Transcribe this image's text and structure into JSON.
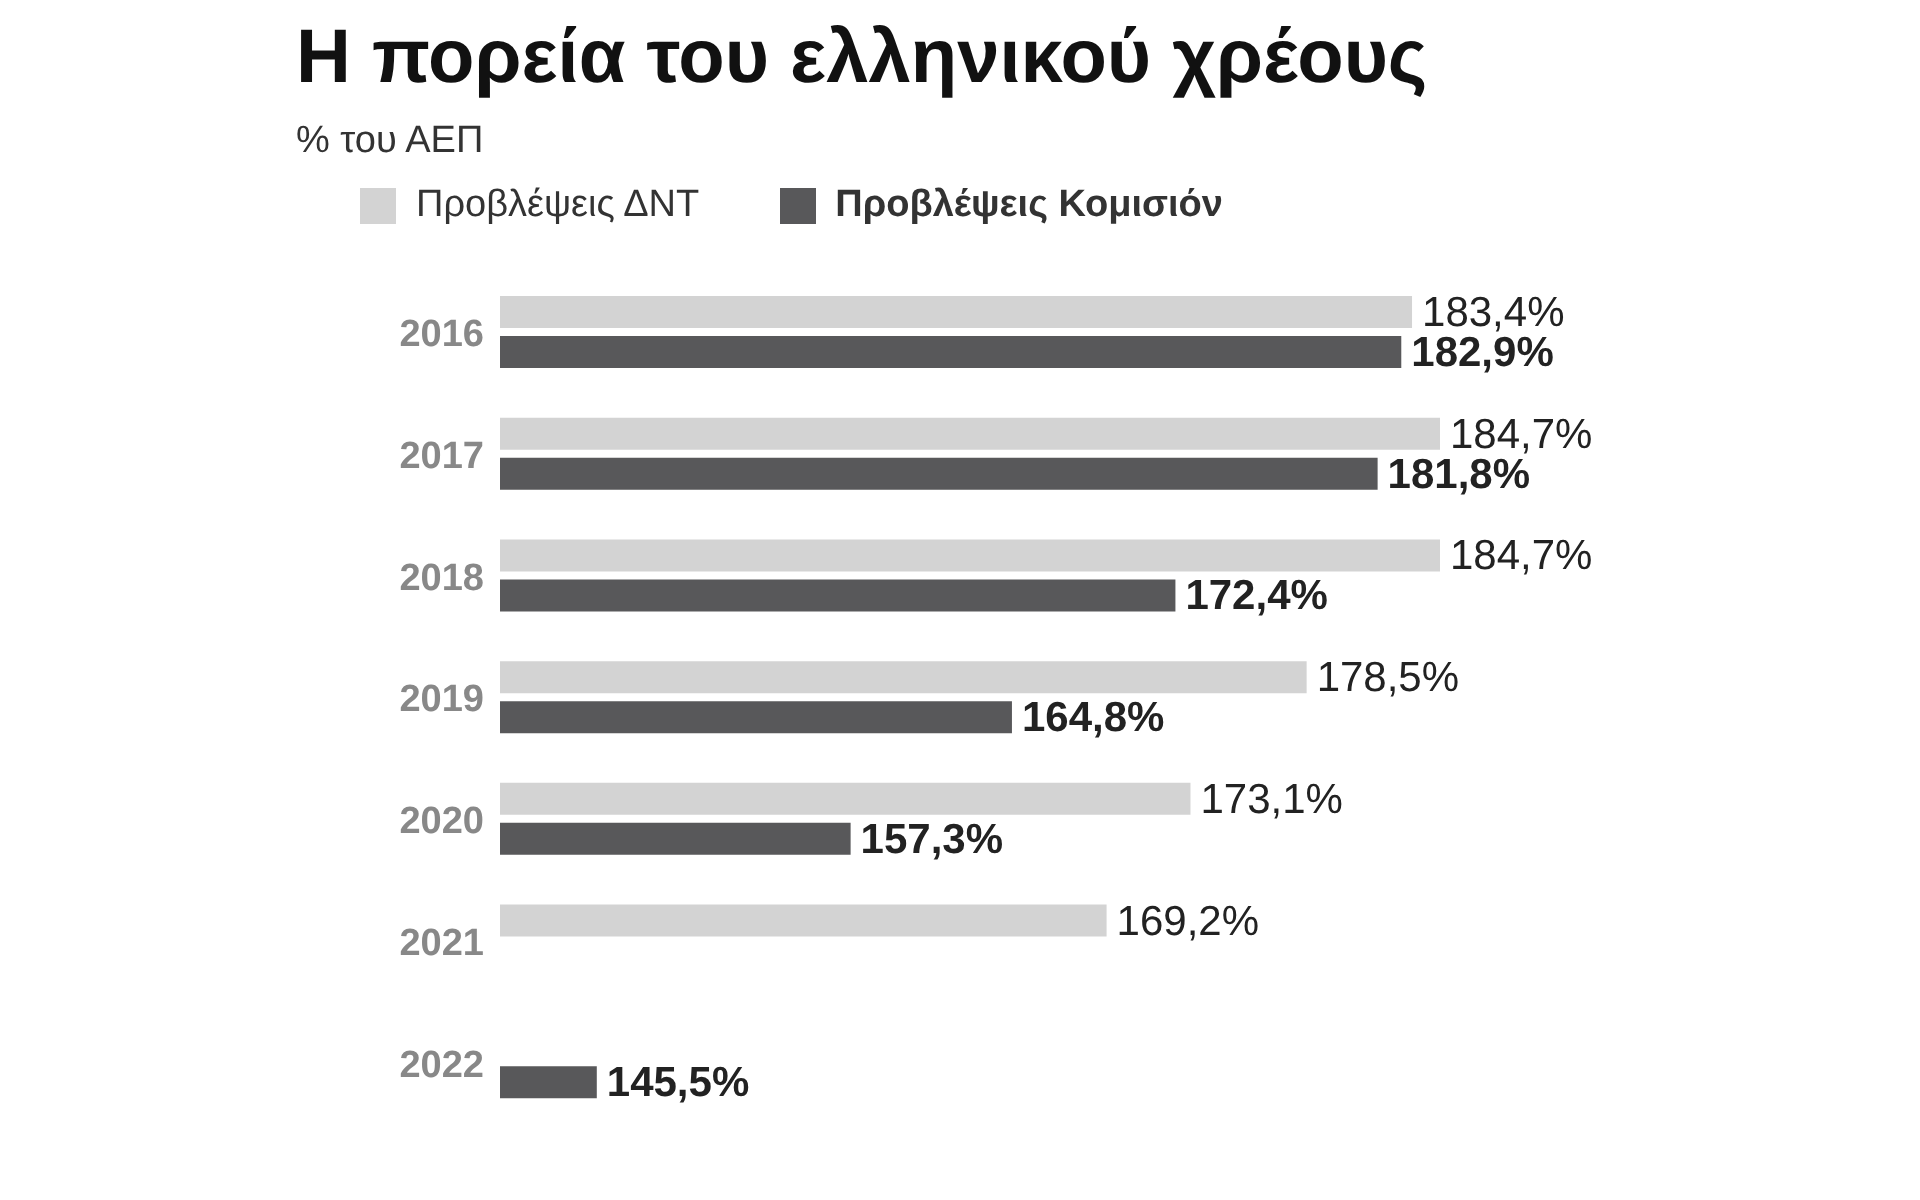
{
  "chart_data": {
    "type": "bar",
    "orientation": "horizontal",
    "title": "Η πορεία του ελληνικού χρέους",
    "subtitle": "% του ΑΕΠ",
    "categories": [
      "2016",
      "2017",
      "2018",
      "2019",
      "2020",
      "2021",
      "2022"
    ],
    "series": [
      {
        "name": "Προβλέψεις ΔΝΤ",
        "color": "#d3d3d3",
        "values": [
          183.4,
          184.7,
          184.7,
          178.5,
          173.1,
          169.2,
          null
        ],
        "value_labels": [
          "183,4%",
          "184,7%",
          "184,7%",
          "178,5%",
          "173,1%",
          "169,2%",
          null
        ]
      },
      {
        "name": "Προβλέψεις Κομισιόν",
        "color": "#58585a",
        "values": [
          182.9,
          181.8,
          172.4,
          164.8,
          157.3,
          null,
          145.5
        ],
        "value_labels": [
          "182,9%",
          "181,8%",
          "172,4%",
          "164,8%",
          "157,3%",
          null,
          "145,5%"
        ]
      }
    ],
    "xlim": [
      141,
      184.7
    ],
    "tick_labels": "y",
    "legend": "top"
  }
}
